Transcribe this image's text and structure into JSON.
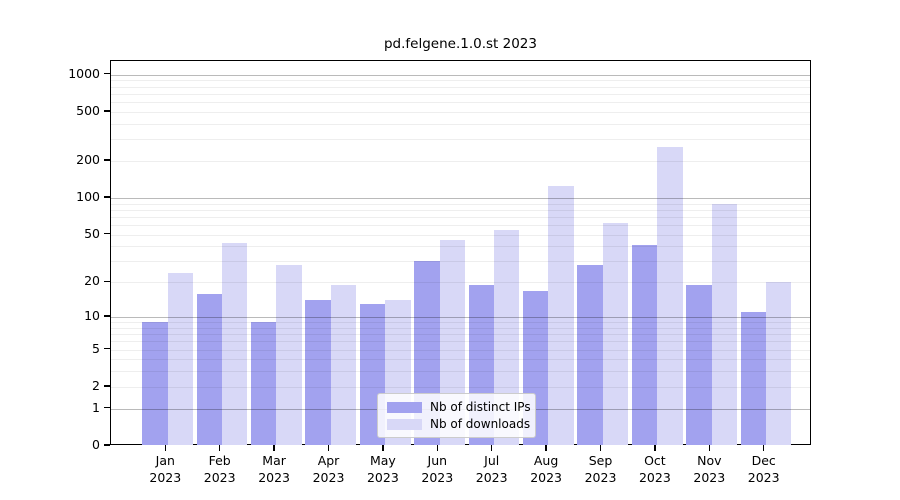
{
  "chart_data": {
    "type": "bar",
    "title": "pd.felgene.1.0.st 2023",
    "categories": [
      "Jan",
      "Feb",
      "Mar",
      "Apr",
      "May",
      "Jun",
      "Jul",
      "Aug",
      "Sep",
      "Oct",
      "Nov",
      "Dec"
    ],
    "year": "2023",
    "series": [
      {
        "name": "Nb of distinct IPs",
        "color": "#a2a2ef",
        "values": [
          9,
          16,
          9,
          14,
          13,
          30,
          19,
          17,
          28,
          41,
          19,
          11
        ]
      },
      {
        "name": "Nb of downloads",
        "color": "#d8d8f7",
        "values": [
          24,
          43,
          28,
          19,
          14,
          45,
          55,
          125,
          62,
          260,
          90,
          20
        ]
      }
    ],
    "xlabel": "",
    "ylabel": "",
    "y_scale": "log1p",
    "y_ticks": [
      0,
      1,
      2,
      5,
      10,
      20,
      50,
      100,
      200,
      500,
      1000
    ],
    "major_gridlines": [
      1,
      10,
      100,
      1000
    ],
    "ylim": [
      0,
      1290
    ],
    "grid": "on",
    "legend_position": "lower-center",
    "colors": {
      "distinct_ips_bar": "#a2a2ef",
      "downloads_bar": "#d8d8f7",
      "axis": "#000000",
      "major_grid": "#bababa",
      "minor_grid": "#ededed",
      "legend_border": "#cccccc"
    }
  }
}
